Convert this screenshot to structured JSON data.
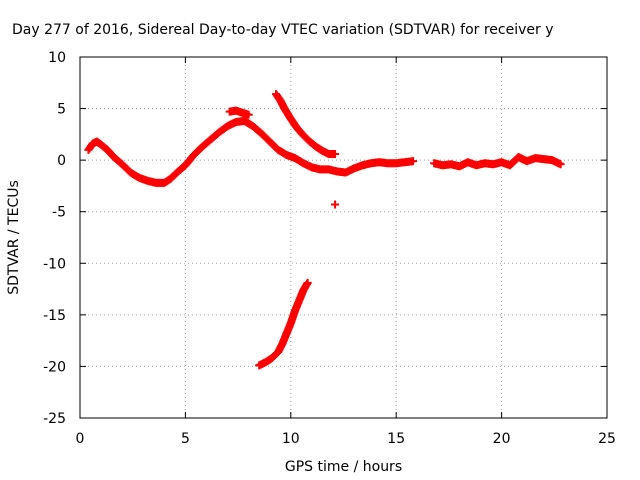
{
  "chart_data": {
    "type": "scatter",
    "title": "Day 277 of 2016, Sidereal Day-to-day VTEC variation (SDTVAR) for receiver y",
    "xlabel": "GPS time / hours",
    "ylabel": "SDTVAR / TECUs",
    "xlim": [
      0,
      25
    ],
    "ylim": [
      -25,
      10
    ],
    "xticks": [
      0,
      5,
      10,
      15,
      20,
      25
    ],
    "yticks": [
      -25,
      -20,
      -15,
      -10,
      -5,
      0,
      5,
      10
    ],
    "grid": true,
    "marker": "plus",
    "color": "#ff0000",
    "series": [
      {
        "x": [
          0.4,
          0.6,
          0.8,
          1.0,
          1.3,
          1.6,
          2.0,
          2.4,
          2.8,
          3.2,
          3.6,
          4.0,
          4.3,
          4.6,
          5.0,
          5.4,
          5.8,
          6.2,
          6.6,
          7.0,
          7.4,
          7.8,
          8.2,
          8.6,
          9.0,
          9.4,
          9.8,
          10.2,
          10.6,
          11.0,
          11.4,
          11.8,
          12.2,
          12.6,
          13.0,
          13.4,
          13.8,
          14.2,
          14.6,
          15.0,
          15.4,
          15.8
        ],
        "y": [
          1.0,
          1.6,
          1.8,
          1.5,
          1.0,
          0.3,
          -0.4,
          -1.2,
          -1.7,
          -2.0,
          -2.2,
          -2.2,
          -1.8,
          -1.2,
          -0.5,
          0.5,
          1.3,
          2.0,
          2.7,
          3.3,
          3.7,
          3.8,
          3.3,
          2.6,
          1.8,
          1.0,
          0.5,
          0.2,
          -0.3,
          -0.7,
          -0.9,
          -0.9,
          -1.1,
          -1.2,
          -0.8,
          -0.5,
          -0.3,
          -0.2,
          -0.3,
          -0.3,
          -0.2,
          -0.1
        ]
      },
      {
        "x": [
          16.8,
          17.2,
          17.6,
          18.0,
          18.4,
          18.8,
          19.2,
          19.6,
          20.0,
          20.4,
          20.8,
          21.2,
          21.6,
          22.0,
          22.4,
          22.8
        ],
        "y": [
          -0.3,
          -0.5,
          -0.4,
          -0.6,
          -0.2,
          -0.5,
          -0.3,
          -0.4,
          -0.2,
          -0.5,
          0.3,
          -0.1,
          0.2,
          0.1,
          0.0,
          -0.4
        ]
      },
      {
        "x": [
          7.1,
          7.4,
          7.7,
          8.0
        ],
        "y": [
          4.7,
          4.8,
          4.6,
          4.4
        ]
      },
      {
        "x": [
          9.3,
          9.5,
          9.7,
          10.0,
          10.3,
          10.6,
          10.9,
          11.2,
          11.5,
          11.8,
          12.1
        ],
        "y": [
          6.4,
          5.8,
          5.0,
          4.0,
          3.1,
          2.4,
          1.8,
          1.3,
          0.9,
          0.6,
          0.6
        ]
      },
      {
        "x": [
          12.1
        ],
        "y": [
          -4.3
        ]
      },
      {
        "x": [
          8.5,
          8.8,
          9.1,
          9.4,
          9.6,
          9.8,
          10.0,
          10.2,
          10.4,
          10.6,
          10.8
        ],
        "y": [
          -19.9,
          -19.6,
          -19.2,
          -18.6,
          -17.8,
          -16.8,
          -15.8,
          -14.6,
          -13.6,
          -12.6,
          -11.9
        ]
      }
    ]
  }
}
